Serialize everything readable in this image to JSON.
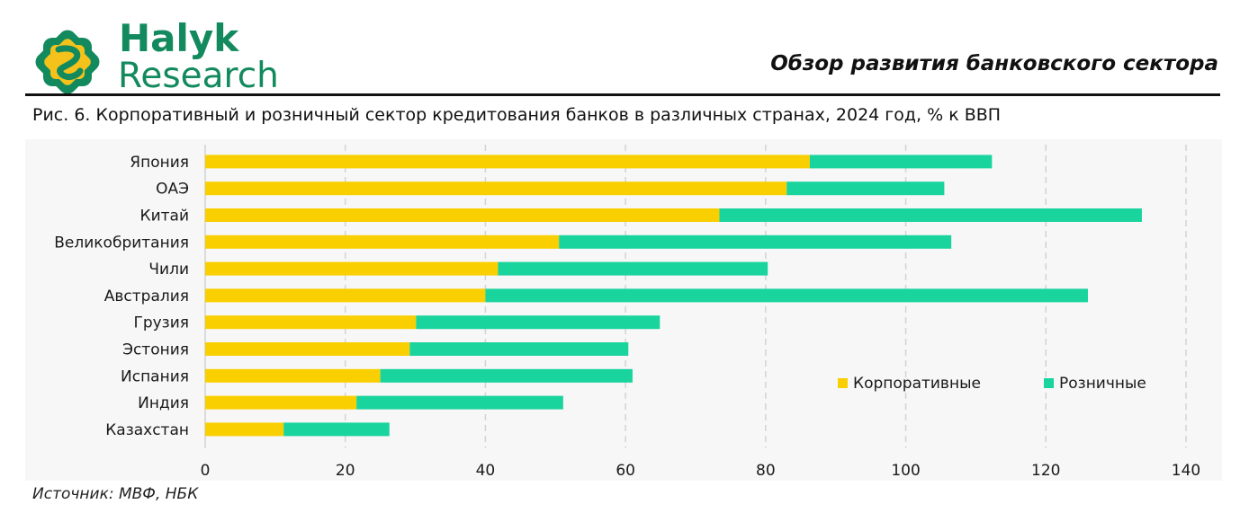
{
  "header": {
    "brand_line1": "Halyk",
    "brand_line2": "Research",
    "report_title": "Обзор развития банковского сектора"
  },
  "figure": {
    "title": "Рис. 6. Корпоративный и розничный сектор кредитования банков в различных странах, 2024 год, % к ВВП",
    "source": "Источник: МВФ, НБК"
  },
  "colors": {
    "corporate": "#f9cf00",
    "retail": "#1ad49e",
    "brand": "#138a5e"
  },
  "chart_data": {
    "type": "bar",
    "orientation": "horizontal",
    "stacked": true,
    "categories": [
      "Япония",
      "ОАЭ",
      "Китай",
      "Великобритания",
      "Чили",
      "Австралия",
      "Грузия",
      "Эстония",
      "Испания",
      "Индия",
      "Казахстан"
    ],
    "series": [
      {
        "name": "Корпоративные",
        "values": [
          86.3,
          83.0,
          73.4,
          50.5,
          41.8,
          40.0,
          30.1,
          29.2,
          25.0,
          21.6,
          11.2
        ]
      },
      {
        "name": "Розничные",
        "values": [
          26.0,
          22.5,
          60.3,
          56.0,
          38.5,
          86.0,
          34.8,
          31.2,
          36.0,
          29.5,
          15.1
        ]
      }
    ],
    "xlim": [
      0,
      140
    ],
    "xticks": [
      "0",
      "20",
      "40",
      "60",
      "80",
      "100",
      "120",
      "140"
    ],
    "grid": "vertical dashed",
    "legend": "inside right"
  }
}
